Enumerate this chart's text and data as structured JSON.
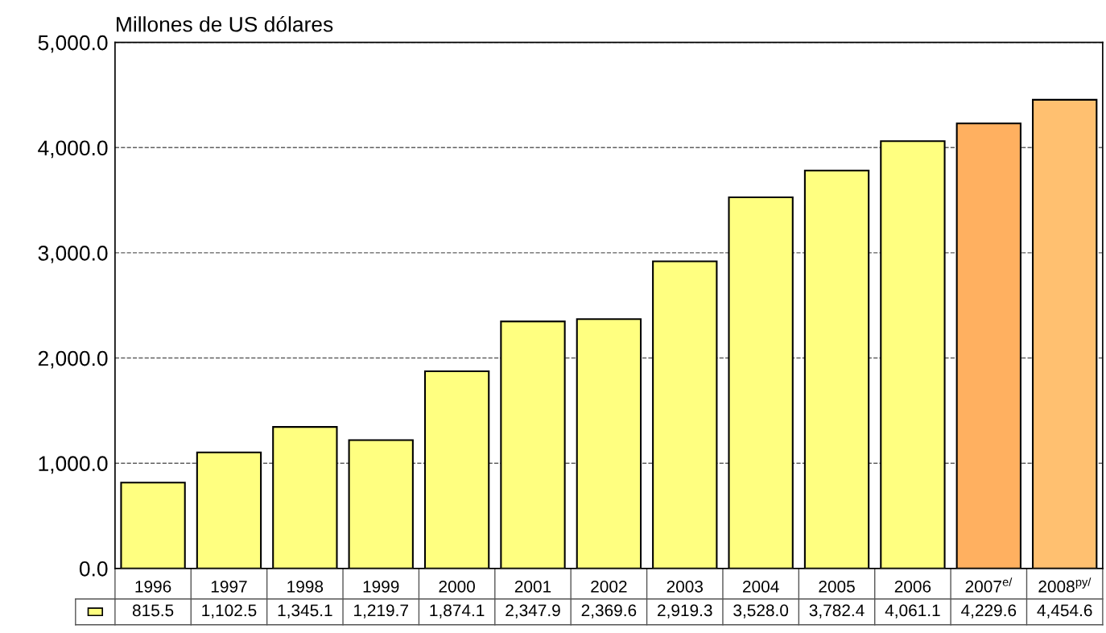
{
  "chart_data": {
    "type": "bar",
    "ylabel": "Millones de US dólares",
    "categories": [
      "1996",
      "1997",
      "1998",
      "1999",
      "2000",
      "2001",
      "2002",
      "2003",
      "2004",
      "2005",
      "2006",
      "2007$^{e/}$",
      "2008$^{py/}$"
    ],
    "values": [
      815.5,
      1102.5,
      1345.1,
      1219.7,
      1874.1,
      2347.9,
      2369.6,
      2919.3,
      3528.0,
      3782.4,
      4061.1,
      4229.6,
      4454.6
    ],
    "colors": [
      "#ffff80",
      "#ffff80",
      "#ffff80",
      "#ffff80",
      "#ffff80",
      "#ffff80",
      "#ffff80",
      "#ffff80",
      "#ffff80",
      "#ffff80",
      "#ffff80",
      "#ffb060",
      "#ffc070"
    ],
    "value_labels": [
      "815.5",
      "1,102.5",
      "1,345.1",
      "1,219.7",
      "1,874.1",
      "2,347.9",
      "2,369.6",
      "2,919.3",
      "3,528.0",
      "3,782.4",
      "4,061.1",
      "4,229.6",
      "4,454.6"
    ],
    "ylim": [
      0,
      5000
    ],
    "yticks": [
      {
        "value": 0,
        "label": "0.0"
      },
      {
        "value": 1000,
        "label": "1,000.0"
      },
      {
        "value": 2000,
        "label": "2,000.0"
      },
      {
        "value": 3000,
        "label": "3,000.0"
      },
      {
        "value": 4000,
        "label": "4,000.0"
      },
      {
        "value": 5000,
        "label": "5,000.0"
      }
    ],
    "grid": "y",
    "line_style": "dashed"
  }
}
